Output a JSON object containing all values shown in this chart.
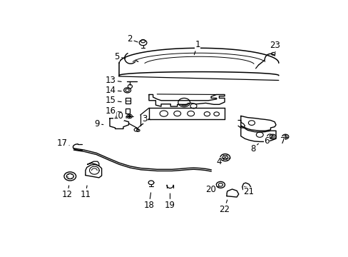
{
  "background_color": "#ffffff",
  "fig_width": 4.89,
  "fig_height": 3.6,
  "dpi": 100,
  "lc": "#000000",
  "labels": {
    "1": [
      0.57,
      0.93,
      0.555,
      0.87
    ],
    "2": [
      0.318,
      0.958,
      0.355,
      0.94
    ],
    "3": [
      0.375,
      0.555,
      0.405,
      0.55
    ],
    "4": [
      0.648,
      0.34,
      0.668,
      0.358
    ],
    "5": [
      0.272,
      0.87,
      0.31,
      0.858
    ],
    "6": [
      0.825,
      0.445,
      0.84,
      0.46
    ],
    "7": [
      0.885,
      0.445,
      0.89,
      0.462
    ],
    "8": [
      0.775,
      0.405,
      0.795,
      0.43
    ],
    "9": [
      0.198,
      0.53,
      0.228,
      0.525
    ],
    "10": [
      0.278,
      0.568,
      0.308,
      0.56
    ],
    "11": [
      0.155,
      0.172,
      0.162,
      0.228
    ],
    "12": [
      0.088,
      0.172,
      0.095,
      0.228
    ],
    "13": [
      0.248,
      0.75,
      0.295,
      0.742
    ],
    "14": [
      0.248,
      0.7,
      0.295,
      0.694
    ],
    "15": [
      0.248,
      0.648,
      0.295,
      0.64
    ],
    "16": [
      0.248,
      0.596,
      0.295,
      0.588
    ],
    "17": [
      0.068,
      0.432,
      0.102,
      0.418
    ],
    "18": [
      0.39,
      0.118,
      0.398,
      0.192
    ],
    "19": [
      0.468,
      0.118,
      0.468,
      0.188
    ],
    "20": [
      0.618,
      0.198,
      0.65,
      0.215
    ],
    "21": [
      0.758,
      0.188,
      0.748,
      0.21
    ],
    "22": [
      0.668,
      0.098,
      0.682,
      0.155
    ],
    "23": [
      0.855,
      0.928,
      0.858,
      0.882
    ]
  },
  "fs": 8.5
}
